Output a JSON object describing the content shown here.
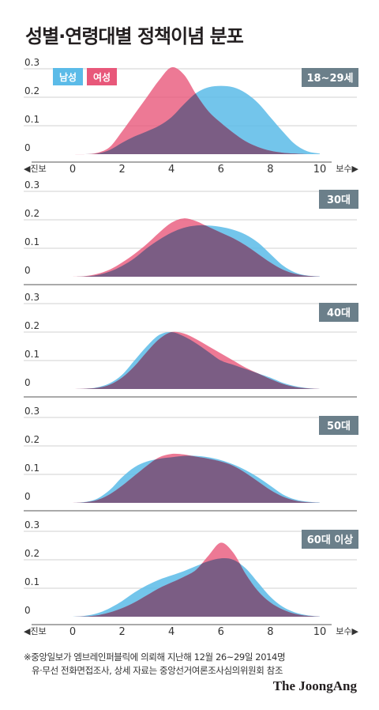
{
  "title": "성별·연령대별 정책이념 분포",
  "footnote": {
    "line1": "※중앙일보가 엠브레인퍼블릭에 의뢰해 지난해 12월 26~29일 2014명",
    "line2": "유·무선 전화면접조사, 상세 자료는 중앙선거여론조사심의위원회 참조"
  },
  "logo": "The JoongAng",
  "axis_edges": {
    "left": "◀진보",
    "right": "보수▶"
  },
  "colors": {
    "male": "#5bbbe8",
    "female": "#e8587a",
    "overlap": "#7b5d84",
    "badge": "#6b7f8a",
    "grid": "#d0d0d0",
    "axis": "#555555"
  },
  "chart_data": [
    {
      "type": "area",
      "panel": "18~29세",
      "legend": [
        "남성",
        "여성"
      ],
      "xticks": [
        0,
        2,
        4,
        6,
        8,
        10
      ],
      "yticks": [
        "0",
        "0.1",
        "0.2",
        "0.3"
      ],
      "xlim": [
        0,
        10
      ],
      "ylim": [
        0,
        0.3
      ],
      "x": [
        0,
        0.5,
        1,
        1.5,
        2,
        2.5,
        3,
        3.5,
        4,
        4.5,
        5,
        5.5,
        6,
        6.5,
        7,
        7.5,
        8,
        8.5,
        9,
        9.5,
        10
      ],
      "series": [
        {
          "name": "남성",
          "values": [
            0,
            0,
            0.002,
            0.015,
            0.04,
            0.062,
            0.08,
            0.1,
            0.13,
            0.175,
            0.215,
            0.235,
            0.24,
            0.235,
            0.215,
            0.18,
            0.13,
            0.08,
            0.035,
            0.01,
            0.002
          ]
        },
        {
          "name": "여성",
          "values": [
            0,
            0,
            0.005,
            0.025,
            0.08,
            0.14,
            0.2,
            0.26,
            0.305,
            0.28,
            0.21,
            0.15,
            0.11,
            0.075,
            0.045,
            0.025,
            0.012,
            0.005,
            0.002,
            0,
            0
          ]
        }
      ]
    },
    {
      "type": "area",
      "panel": "30대",
      "xticks": [
        0,
        2,
        4,
        6,
        8,
        10
      ],
      "yticks": [
        "0",
        "0.1",
        "0.2",
        "0.3"
      ],
      "xlim": [
        0,
        10
      ],
      "ylim": [
        0,
        0.3
      ],
      "x": [
        0,
        0.5,
        1,
        1.5,
        2,
        2.5,
        3,
        3.5,
        4,
        4.5,
        5,
        5.5,
        6,
        6.5,
        7,
        7.5,
        8,
        8.5,
        9,
        9.5,
        10
      ],
      "series": [
        {
          "name": "남성",
          "values": [
            0,
            0.001,
            0.006,
            0.018,
            0.038,
            0.065,
            0.1,
            0.13,
            0.155,
            0.172,
            0.18,
            0.18,
            0.175,
            0.165,
            0.148,
            0.12,
            0.08,
            0.04,
            0.015,
            0.004,
            0.001
          ]
        },
        {
          "name": "여성",
          "values": [
            0,
            0.002,
            0.01,
            0.025,
            0.05,
            0.08,
            0.115,
            0.155,
            0.19,
            0.205,
            0.195,
            0.175,
            0.155,
            0.135,
            0.11,
            0.08,
            0.05,
            0.025,
            0.01,
            0.003,
            0
          ]
        }
      ]
    },
    {
      "type": "area",
      "panel": "40대",
      "xticks": [
        0,
        2,
        4,
        6,
        8,
        10
      ],
      "yticks": [
        "0",
        "0.1",
        "0.2",
        "0.3"
      ],
      "xlim": [
        0,
        10
      ],
      "ylim": [
        0,
        0.3
      ],
      "x": [
        0,
        0.5,
        1,
        1.5,
        2,
        2.5,
        3,
        3.5,
        4,
        4.5,
        5,
        5.5,
        6,
        6.5,
        7,
        7.5,
        8,
        8.5,
        9,
        9.5,
        10
      ],
      "series": [
        {
          "name": "남성",
          "values": [
            0,
            0.001,
            0.006,
            0.02,
            0.05,
            0.1,
            0.15,
            0.19,
            0.2,
            0.185,
            0.16,
            0.13,
            0.1,
            0.085,
            0.07,
            0.055,
            0.04,
            0.022,
            0.01,
            0.003,
            0
          ]
        },
        {
          "name": "여성",
          "values": [
            0,
            0.001,
            0.004,
            0.015,
            0.04,
            0.08,
            0.13,
            0.175,
            0.2,
            0.195,
            0.175,
            0.15,
            0.125,
            0.1,
            0.075,
            0.055,
            0.035,
            0.018,
            0.007,
            0.002,
            0
          ]
        }
      ]
    },
    {
      "type": "area",
      "panel": "50대",
      "xticks": [
        0,
        2,
        4,
        6,
        8,
        10
      ],
      "yticks": [
        "0",
        "0.1",
        "0.2",
        "0.3"
      ],
      "xlim": [
        0,
        10
      ],
      "ylim": [
        0,
        0.3
      ],
      "x": [
        0,
        0.5,
        1,
        1.5,
        2,
        2.5,
        3,
        3.5,
        4,
        4.5,
        5,
        5.5,
        6,
        6.5,
        7,
        7.5,
        8,
        8.5,
        9,
        9.5,
        10
      ],
      "series": [
        {
          "name": "남성",
          "values": [
            0,
            0.003,
            0.015,
            0.045,
            0.09,
            0.125,
            0.145,
            0.155,
            0.16,
            0.165,
            0.165,
            0.16,
            0.15,
            0.135,
            0.115,
            0.09,
            0.06,
            0.03,
            0.012,
            0.004,
            0.001
          ]
        },
        {
          "name": "여성",
          "values": [
            0,
            0.002,
            0.01,
            0.03,
            0.06,
            0.095,
            0.13,
            0.16,
            0.172,
            0.17,
            0.162,
            0.155,
            0.145,
            0.13,
            0.105,
            0.075,
            0.045,
            0.022,
            0.008,
            0.002,
            0
          ]
        }
      ]
    },
    {
      "type": "area",
      "panel": "60대 이상",
      "xticks": [
        0,
        2,
        4,
        6,
        8,
        10
      ],
      "yticks": [
        "0",
        "0.1",
        "0.2",
        "0.3"
      ],
      "xlim": [
        0,
        10
      ],
      "ylim": [
        0,
        0.3
      ],
      "x": [
        0,
        0.5,
        1,
        1.5,
        2,
        2.5,
        3,
        3.5,
        4,
        4.5,
        5,
        5.5,
        6,
        6.5,
        7,
        7.5,
        8,
        8.5,
        9,
        9.5,
        10
      ],
      "series": [
        {
          "name": "남성",
          "values": [
            0,
            0.003,
            0.012,
            0.03,
            0.055,
            0.085,
            0.11,
            0.13,
            0.145,
            0.16,
            0.178,
            0.195,
            0.205,
            0.2,
            0.17,
            0.12,
            0.07,
            0.035,
            0.015,
            0.005,
            0.001
          ]
        },
        {
          "name": "여성",
          "values": [
            0,
            0.001,
            0.005,
            0.015,
            0.03,
            0.05,
            0.075,
            0.1,
            0.12,
            0.14,
            0.165,
            0.215,
            0.26,
            0.225,
            0.15,
            0.09,
            0.05,
            0.025,
            0.01,
            0.003,
            0
          ]
        }
      ]
    }
  ]
}
